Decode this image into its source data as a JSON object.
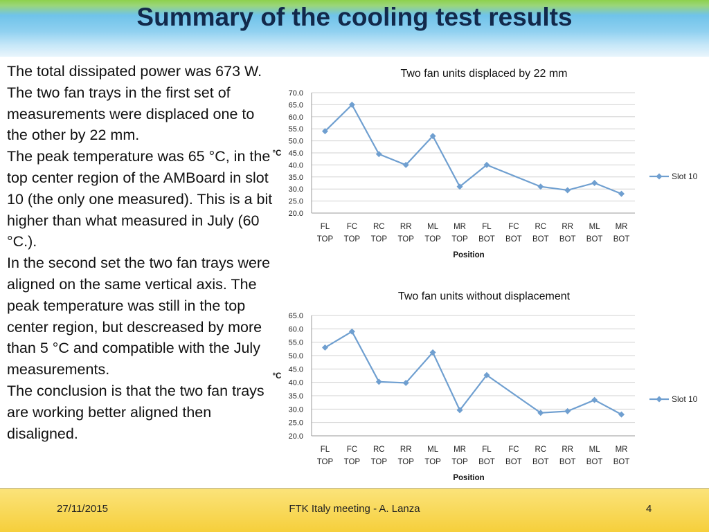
{
  "slide": {
    "title": "Summary of the cooling test results",
    "paragraphs": [
      "The total dissipated power was 673 W.",
      "The two fan trays in the first set of measurements were displaced one to the other by 22 mm.",
      "The peak temperature was 65 °C, in the top center region of the AMBoard in slot 10 (the only one measured). This is a bit higher than what measured in July (60 °C.).",
      "In the second set the two fan trays were aligned on the same vertical axis. The peak temperature was still in the top center region, but descreased by more than 5 °C and compatible with the July measurements.",
      "The conclusion is that the two fan trays are working better aligned then disaligned."
    ]
  },
  "footer": {
    "date": "27/11/2015",
    "center": "FTK Italy meeting - A. Lanza",
    "page": "4"
  },
  "chart_data": [
    {
      "type": "line",
      "title": "Two fan units displaced by 22 mm",
      "xlabel": "Position",
      "ylabel": "°C",
      "categories": [
        [
          "FL",
          "TOP"
        ],
        [
          "FC",
          "TOP"
        ],
        [
          "RC",
          "TOP"
        ],
        [
          "RR",
          "TOP"
        ],
        [
          "ML",
          "TOP"
        ],
        [
          "MR",
          "TOP"
        ],
        [
          "FL",
          "BOT"
        ],
        [
          "FC",
          "BOT"
        ],
        [
          "RC",
          "BOT"
        ],
        [
          "RR",
          "BOT"
        ],
        [
          "ML",
          "BOT"
        ],
        [
          "MR",
          "BOT"
        ]
      ],
      "ylim": [
        20,
        70
      ],
      "ystep": 5,
      "yticks": [
        "20.0",
        "25.0",
        "30.0",
        "35.0",
        "40.0",
        "45.0",
        "50.0",
        "55.0",
        "60.0",
        "65.0",
        "70.0"
      ],
      "grid": true,
      "legend_position": "right",
      "color": "#6f9fd0",
      "series": [
        {
          "name": "Slot 10",
          "values": [
            54,
            65,
            44.5,
            40,
            52,
            31,
            40,
            null,
            31,
            29.5,
            32.5,
            28
          ]
        }
      ]
    },
    {
      "type": "line",
      "title": "Two fan units  without displacement",
      "xlabel": "Position",
      "ylabel": "°C",
      "categories": [
        [
          "FL",
          "TOP"
        ],
        [
          "FC",
          "TOP"
        ],
        [
          "RC",
          "TOP"
        ],
        [
          "RR",
          "TOP"
        ],
        [
          "ML",
          "TOP"
        ],
        [
          "MR",
          "TOP"
        ],
        [
          "FL",
          "BOT"
        ],
        [
          "FC",
          "BOT"
        ],
        [
          "RC",
          "BOT"
        ],
        [
          "RR",
          "BOT"
        ],
        [
          "ML",
          "BOT"
        ],
        [
          "MR",
          "BOT"
        ]
      ],
      "ylim": [
        20,
        65
      ],
      "ystep": 5,
      "yticks": [
        "20.0",
        "25.0",
        "30.0",
        "35.0",
        "40.0",
        "45.0",
        "50.0",
        "55.0",
        "60.0",
        "65.0"
      ],
      "grid": true,
      "legend_position": "right",
      "color": "#6f9fd0",
      "series": [
        {
          "name": "Slot 10",
          "values": [
            53,
            59,
            40.2,
            39.8,
            51.2,
            29.6,
            42.7,
            null,
            28.6,
            29.2,
            33.4,
            28
          ]
        }
      ]
    }
  ]
}
